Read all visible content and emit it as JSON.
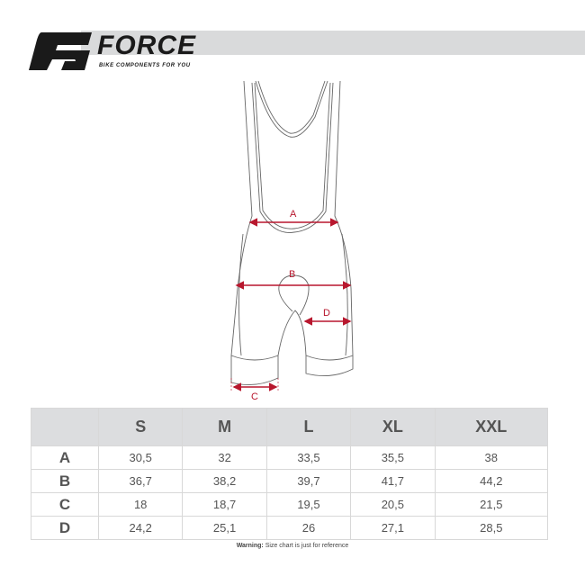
{
  "brand": {
    "name": "FORCE",
    "tagline": "BIKE COMPONENTS FOR YOU"
  },
  "diagram": {
    "labels": [
      "A",
      "B",
      "C",
      "D"
    ],
    "accent_color": "#b8172e"
  },
  "table": {
    "columns": [
      "",
      "S",
      "M",
      "L",
      "XL",
      "XXL"
    ],
    "rows": [
      {
        "label": "A",
        "values": [
          "30,5",
          "32",
          "33,5",
          "35,5",
          "38"
        ]
      },
      {
        "label": "B",
        "values": [
          "36,7",
          "38,2",
          "39,7",
          "41,7",
          "44,2"
        ]
      },
      {
        "label": "C",
        "values": [
          "18",
          "18,7",
          "19,5",
          "20,5",
          "21,5"
        ]
      },
      {
        "label": "D",
        "values": [
          "24,2",
          "25,1",
          "26",
          "27,1",
          "28,5"
        ]
      }
    ]
  },
  "footer": {
    "warning_label": "Warning:",
    "warning_text": " Size chart is just for reference"
  }
}
